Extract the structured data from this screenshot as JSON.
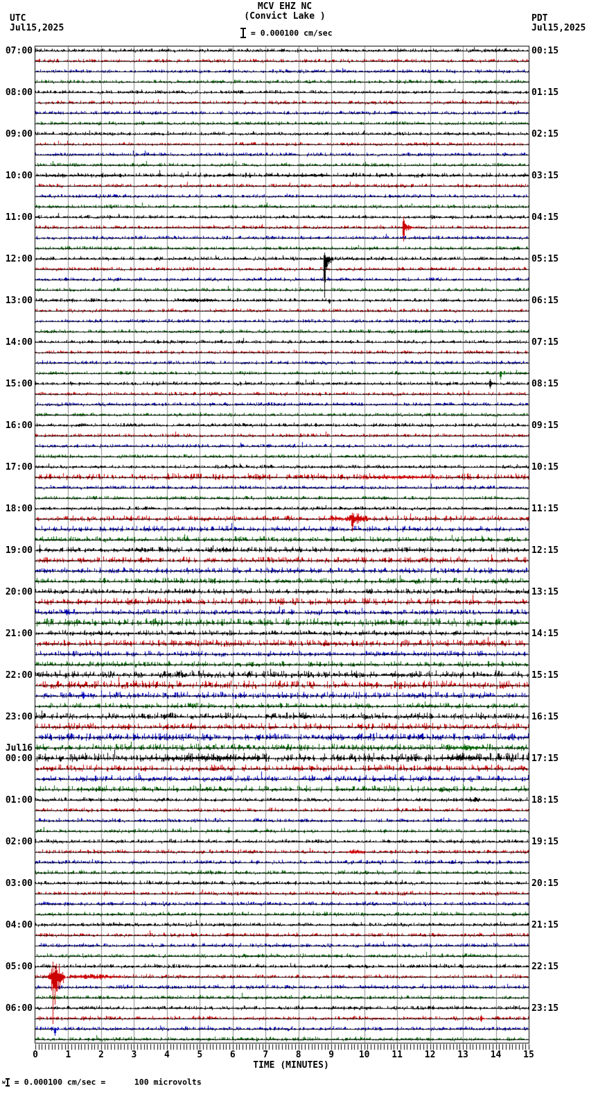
{
  "header": {
    "left_tz": "UTC",
    "left_date": "Jul15,2025",
    "title_line1": "MCV EHZ NC",
    "title_line2": "(Convict Lake )",
    "scale_text": " = 0.000100 cm/sec",
    "right_tz": "PDT",
    "right_date": "Jul15,2025"
  },
  "footer": {
    "calibration_text": " = 0.000100 cm/sec =      100 microvolts"
  },
  "chart_data": {
    "type": "line",
    "title": "MCV EHZ NC (Convict Lake ) helicorder / webicorder day plot",
    "xlabel": "TIME (MINUTES)",
    "x_range": [
      0,
      15
    ],
    "x_ticks": [
      0,
      1,
      2,
      3,
      4,
      5,
      6,
      7,
      8,
      9,
      10,
      11,
      12,
      13,
      14,
      15
    ],
    "minor_tick_minutes": 0.1,
    "rows": 96,
    "minutes_per_row": 15,
    "row_color_cycle": [
      "#000000",
      "#cc0000",
      "#0000bb",
      "#006600"
    ],
    "grid_color": "#8a8a8a",
    "utc_hour_labels": [
      "07:00",
      "08:00",
      "09:00",
      "10:00",
      "11:00",
      "12:00",
      "13:00",
      "14:00",
      "15:00",
      "16:00",
      "17:00",
      "18:00",
      "19:00",
      "20:00",
      "21:00",
      "22:00",
      "23:00",
      "00:00",
      "01:00",
      "02:00",
      "03:00",
      "04:00",
      "05:00",
      "06:00"
    ],
    "utc_day_break": {
      "label": "Jul16",
      "above_hour_index": 17
    },
    "pdt_hour_labels": [
      "00:15",
      "01:15",
      "02:15",
      "03:15",
      "04:15",
      "05:15",
      "06:15",
      "07:15",
      "08:15",
      "09:15",
      "10:15",
      "11:15",
      "12:15",
      "13:15",
      "14:15",
      "15:15",
      "16:15",
      "17:15",
      "18:15",
      "19:15",
      "20:15",
      "21:15",
      "22:15",
      "23:15"
    ],
    "noise_base": [
      {
        "rows": [
          0,
          44
        ],
        "amp": 1.05
      },
      {
        "rows": [
          45,
          71
        ],
        "amp": 1.6
      },
      {
        "rows": [
          72,
          95
        ],
        "amp": 1.15
      }
    ],
    "noise_overrides": {
      "12": 1.3,
      "41": 1.8,
      "45": 1.6,
      "49": 1.8,
      "53": 1.9,
      "55": 2.2,
      "57": 2.0,
      "60": 2.1,
      "61": 2.3,
      "62": 1.9,
      "64": 1.9,
      "65": 1.9,
      "66": 2.1,
      "67": 1.9,
      "68": 2.5,
      "69": 1.9,
      "70": 1.8,
      "71": 1.8
    },
    "events": [
      {
        "type": "burst",
        "row": 12,
        "t0": 7.9,
        "t1": 9.1,
        "up": 2.5,
        "dn": 2
      },
      {
        "type": "spike",
        "row": 17,
        "t": 11.18,
        "up": 16,
        "dn": 20,
        "tail": 0.3
      },
      {
        "type": "spike",
        "row": 20,
        "t": 8.78,
        "up": 9,
        "dn": 56,
        "tail": 0.25
      },
      {
        "type": "burst",
        "row": 24,
        "t0": 4.25,
        "t1": 5.6,
        "up": 3.5,
        "dn": 2.5
      },
      {
        "type": "spike",
        "row": 24,
        "t": 8.93,
        "up": 2,
        "dn": 5,
        "tail": 0.05
      },
      {
        "type": "spike",
        "row": 31,
        "t": 14.13,
        "up": 3,
        "dn": 9,
        "tail": 0.12
      },
      {
        "type": "spike",
        "row": 32,
        "t": 13.82,
        "up": 7,
        "dn": 7,
        "tail": 0.12
      },
      {
        "type": "burst",
        "row": 41,
        "t0": 9.9,
        "t1": 12.3,
        "up": 3.5,
        "dn": 2.5
      },
      {
        "type": "burst",
        "row": 45,
        "t0": 8.85,
        "t1": 9.35,
        "up": 4,
        "dn": 3
      },
      {
        "type": "burst",
        "row": 45,
        "t0": 9.35,
        "t1": 10.2,
        "up": 9,
        "dn": 7
      },
      {
        "type": "spike",
        "row": 45,
        "t": 9.62,
        "up": 9,
        "dn": 18,
        "tail": 0.25
      },
      {
        "type": "spike",
        "row": 54,
        "t": 0.95,
        "up": 5,
        "dn": 4,
        "tail": 0.18
      },
      {
        "type": "burst",
        "row": 60,
        "t0": 10.4,
        "t1": 11.2,
        "up": 3,
        "dn": 2
      },
      {
        "type": "spike",
        "row": 62,
        "t": 1.45,
        "up": 6,
        "dn": 5,
        "tail": 0.2
      },
      {
        "type": "burst",
        "row": 67,
        "t0": 12.55,
        "t1": 13.75,
        "up": 4.5,
        "dn": 3.5
      },
      {
        "type": "burst",
        "row": 68,
        "t0": 3.2,
        "t1": 7.3,
        "up": 3.5,
        "dn": 2.5
      },
      {
        "type": "burst",
        "row": 68,
        "t0": 12.3,
        "t1": 13.6,
        "up": 4.5,
        "dn": 3
      },
      {
        "type": "spike",
        "row": 72,
        "t": 13.35,
        "up": 4,
        "dn": 3,
        "tail": 0.08
      },
      {
        "type": "burst",
        "row": 77,
        "t0": 9.45,
        "t1": 10.05,
        "up": 3.5,
        "dn": 2.5
      },
      {
        "type": "burst",
        "row": 89,
        "t0": 0.35,
        "t1": 0.9,
        "up": 20,
        "dn": 22
      },
      {
        "type": "line",
        "row": 89,
        "t": 0.53,
        "up": 22,
        "dn": 68
      },
      {
        "type": "line",
        "row": 89,
        "t": 0.58,
        "up": 16,
        "dn": 40
      },
      {
        "type": "line",
        "row": 89,
        "t": 0.49,
        "up": 12,
        "dn": 20
      },
      {
        "type": "burst",
        "row": 89,
        "t0": 0.9,
        "t1": 2.7,
        "up": 4.5,
        "dn": 3.5
      },
      {
        "type": "spike",
        "row": 93,
        "t": 13.55,
        "up": 5,
        "dn": 5,
        "tail": 0.15
      },
      {
        "type": "spike",
        "row": 94,
        "t": 0.58,
        "up": 2,
        "dn": 10,
        "tail": 0.15
      }
    ]
  }
}
